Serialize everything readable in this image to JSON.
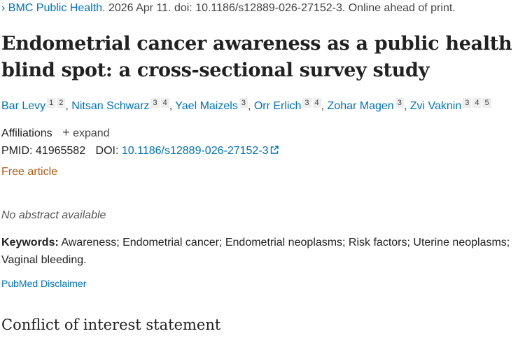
{
  "citation": {
    "chevron_icon": "chevron-right",
    "journal": "BMC Public Health.",
    "details": " 2026 Apr 11. doi: 10.1186/s12889-026-27152-3. Online ahead of print."
  },
  "title": "Endometrial cancer awareness as a public health blind spot: a cross-sectional survey study",
  "authors": [
    {
      "name": "Bar Levy",
      "affils": [
        "1",
        "2"
      ]
    },
    {
      "name": "Nitsan Schwarz",
      "affils": [
        "3",
        "4"
      ]
    },
    {
      "name": "Yael Maizels",
      "affils": [
        "3"
      ]
    },
    {
      "name": "Orr Erlich",
      "affils": [
        "3",
        "4"
      ]
    },
    {
      "name": "Zohar Magen",
      "affils": [
        "3"
      ]
    },
    {
      "name": "Zvi Vaknin",
      "affils": [
        "3",
        "4",
        "5"
      ]
    }
  ],
  "affiliations": {
    "label": "Affiliations",
    "expand": "expand"
  },
  "ids": {
    "pmid_label": "PMID:",
    "pmid": "41965582",
    "doi_label": "DOI:",
    "doi": "10.1186/s12889-026-27152-3"
  },
  "free_article": "Free article",
  "no_abstract": "No abstract available",
  "keywords": {
    "label": "Keywords:",
    "text": " Awareness; Endometrial cancer; Endometrial neoplasms; Risk factors; Uterine neoplasms; Vaginal bleeding."
  },
  "disclaimer": "PubMed Disclaimer",
  "coi_heading": "Conflict of interest statement"
}
